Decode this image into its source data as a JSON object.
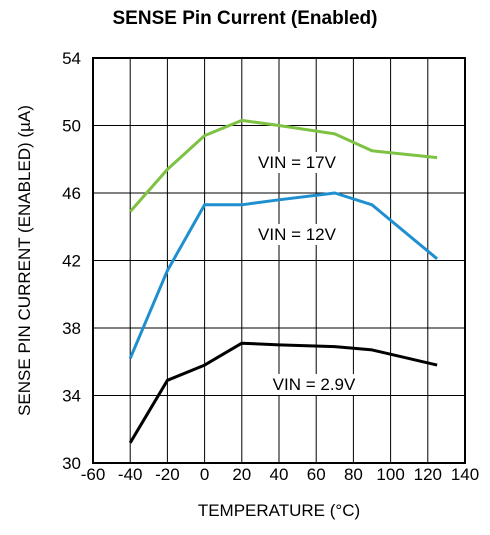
{
  "chart_data": {
    "type": "line",
    "title": "SENSE Pin Current (Enabled)",
    "xlabel": "TEMPERATURE (°C)",
    "ylabel": "SENSE PIN CURRENT (ENABLED) (µA)",
    "xlim": [
      -60,
      140
    ],
    "ylim": [
      30,
      54
    ],
    "xticks": [
      -60,
      -40,
      -20,
      0,
      20,
      40,
      60,
      80,
      100,
      120,
      140
    ],
    "yticks": [
      30,
      34,
      38,
      42,
      46,
      50,
      54
    ],
    "grid": true,
    "series": [
      {
        "name": "VIN = 17V",
        "color": "#7dc242",
        "x": [
          -40,
          -20,
          0,
          20,
          40,
          70,
          90,
          125
        ],
        "y": [
          44.9,
          47.4,
          49.4,
          50.3,
          50.0,
          49.5,
          48.5,
          48.1
        ]
      },
      {
        "name": "VIN = 12V",
        "color": "#1f8fcf",
        "x": [
          -40,
          -20,
          0,
          20,
          40,
          70,
          90,
          125
        ],
        "y": [
          36.2,
          41.4,
          45.3,
          45.3,
          45.6,
          46.0,
          45.3,
          42.1
        ]
      },
      {
        "name": "VIN = 2.9V",
        "color": "#000000",
        "x": [
          -40,
          -20,
          0,
          20,
          40,
          70,
          90,
          125
        ],
        "y": [
          31.2,
          34.9,
          35.8,
          37.1,
          37.0,
          36.9,
          36.7,
          35.8
        ]
      }
    ]
  }
}
